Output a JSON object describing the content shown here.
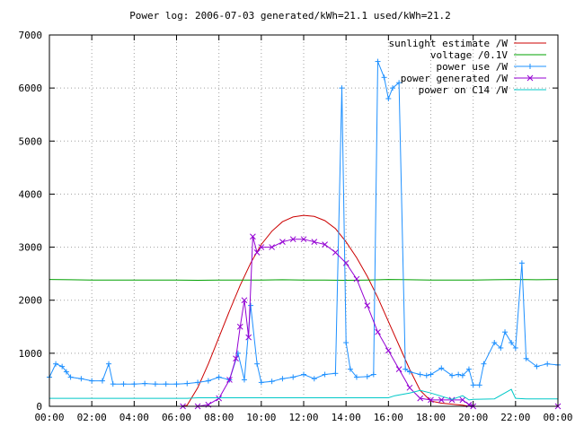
{
  "chart_data": {
    "type": "line",
    "title": "Power log: 2006-07-03 generated/kWh=21.1 used/kWh=21.2",
    "xlabel": "",
    "ylabel": "",
    "xlim": [
      0,
      24
    ],
    "ylim": [
      0,
      7000
    ],
    "grid": true,
    "legend_position": "top-right",
    "x_tick_labels": [
      "00:00",
      "02:00",
      "04:00",
      "06:00",
      "08:00",
      "10:00",
      "12:00",
      "14:00",
      "16:00",
      "18:00",
      "20:00",
      "22:00",
      "00:00"
    ],
    "x_ticks": [
      0,
      2,
      4,
      6,
      8,
      10,
      12,
      14,
      16,
      18,
      20,
      22,
      24
    ],
    "y_ticks": [
      0,
      1000,
      2000,
      3000,
      4000,
      5000,
      6000,
      7000
    ],
    "y_tick_labels": [
      "0",
      "1000",
      "2000",
      "3000",
      "4000",
      "5000",
      "6000",
      "7000"
    ],
    "series": [
      {
        "name": "sunlight estimate /W",
        "color": "#cc0000",
        "marker": "none",
        "x": [
          0,
          6.3,
          6.5,
          7,
          7.5,
          8,
          8.5,
          9,
          9.5,
          10,
          10.5,
          11,
          11.5,
          12,
          12.5,
          13,
          13.5,
          14,
          14.5,
          15,
          15.5,
          16,
          16.5,
          17,
          17.5,
          18,
          18.5,
          19,
          19.5,
          19.8,
          20,
          24
        ],
        "y": [
          0,
          0,
          20,
          350,
          800,
          1300,
          1800,
          2280,
          2700,
          3050,
          3300,
          3480,
          3570,
          3600,
          3580,
          3500,
          3350,
          3100,
          2800,
          2450,
          2050,
          1600,
          1150,
          700,
          300,
          100,
          60,
          40,
          20,
          0,
          0,
          0
        ]
      },
      {
        "name": "voltage /0.1V",
        "color": "#00a000",
        "marker": "none",
        "x": [
          0,
          1,
          2,
          3,
          4,
          5,
          6,
          7,
          8,
          9,
          10,
          11,
          12,
          13,
          14,
          15,
          16,
          17,
          18,
          19,
          20,
          21,
          22,
          23,
          24
        ],
        "y": [
          2390,
          2385,
          2380,
          2380,
          2380,
          2380,
          2380,
          2375,
          2380,
          2380,
          2380,
          2385,
          2380,
          2380,
          2375,
          2380,
          2390,
          2385,
          2380,
          2380,
          2380,
          2385,
          2390,
          2385,
          2390
        ]
      },
      {
        "name": "power use /W",
        "color": "#1e90ff",
        "marker": "+",
        "x": [
          0,
          0.3,
          0.6,
          0.8,
          1.0,
          1.5,
          2.0,
          2.5,
          2.8,
          3.0,
          3.5,
          4.0,
          4.5,
          5.0,
          5.5,
          6.0,
          6.5,
          7.0,
          7.5,
          8.0,
          8.5,
          8.9,
          9.2,
          9.5,
          9.8,
          10.0,
          10.5,
          11.0,
          11.5,
          12.0,
          12.5,
          13.0,
          13.5,
          13.8,
          14.0,
          14.2,
          14.5,
          15.0,
          15.3,
          15.5,
          15.8,
          16.0,
          16.2,
          16.5,
          16.8,
          17.0,
          17.5,
          17.8,
          18.0,
          18.5,
          19.0,
          19.3,
          19.5,
          19.8,
          20.0,
          20.3,
          20.5,
          21.0,
          21.3,
          21.5,
          21.8,
          22.0,
          22.3,
          22.5,
          23.0,
          23.5,
          24.0
        ],
        "y": [
          550,
          800,
          750,
          650,
          550,
          520,
          480,
          480,
          800,
          420,
          420,
          420,
          430,
          420,
          420,
          420,
          430,
          450,
          480,
          550,
          500,
          1000,
          500,
          1900,
          800,
          450,
          470,
          520,
          550,
          600,
          520,
          600,
          620,
          6000,
          1200,
          700,
          550,
          560,
          600,
          6500,
          6200,
          5800,
          6000,
          6100,
          700,
          650,
          600,
          580,
          600,
          720,
          580,
          600,
          580,
          700,
          400,
          400,
          800,
          1200,
          1100,
          1400,
          1200,
          1100,
          2700,
          900,
          750,
          800,
          780
        ]
      },
      {
        "name": "power generated /W",
        "color": "#9400d3",
        "marker": "x",
        "x": [
          6.3,
          7.0,
          7.5,
          8.0,
          8.5,
          8.8,
          9.0,
          9.2,
          9.4,
          9.6,
          9.8,
          10.0,
          10.5,
          11.0,
          11.5,
          12.0,
          12.5,
          13.0,
          13.5,
          14.0,
          14.5,
          15.0,
          15.5,
          16.0,
          16.5,
          17.0,
          17.5,
          18.0,
          18.5,
          19.0,
          19.5,
          19.8,
          20.0,
          24.0
        ],
        "y": [
          0,
          0,
          30,
          150,
          500,
          900,
          1500,
          2000,
          1300,
          3200,
          2900,
          3000,
          3000,
          3100,
          3150,
          3150,
          3100,
          3050,
          2900,
          2700,
          2400,
          1900,
          1400,
          1050,
          700,
          350,
          150,
          120,
          120,
          120,
          120,
          30,
          0,
          0
        ]
      },
      {
        "name": "power on C14 /W",
        "color": "#00c8c8",
        "marker": "none",
        "x": [
          0,
          6.5,
          7.0,
          10.0,
          13.0,
          15.0,
          16.0,
          16.3,
          17.0,
          17.5,
          18.0,
          19.0,
          19.5,
          19.8,
          20.0,
          21.0,
          21.8,
          22.0,
          22.5,
          24.0
        ],
        "y": [
          150,
          150,
          160,
          160,
          160,
          160,
          160,
          200,
          250,
          300,
          250,
          130,
          200,
          120,
          130,
          140,
          320,
          150,
          140,
          140
        ]
      }
    ]
  }
}
